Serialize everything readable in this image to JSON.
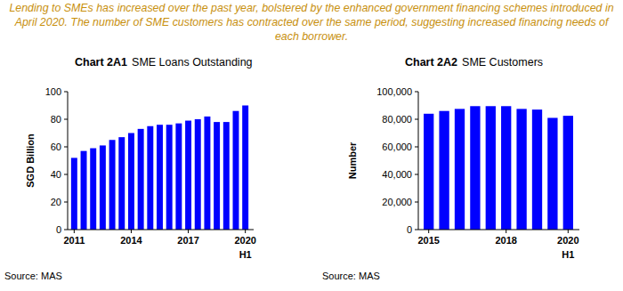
{
  "caption": "Lending to SMEs has increased over the past year, bolstered by the enhanced government financing schemes introduced in April 2020. The number of SME customers has contracted over the same period, suggesting increased financing needs of each borrower.",
  "chart_data": [
    {
      "type": "bar",
      "title": "Chart 2A1",
      "subtitle": "SME Loans Outstanding",
      "y_label": "SGD Billion",
      "categories": [
        "2011",
        null,
        null,
        null,
        null,
        null,
        "2014",
        null,
        null,
        null,
        null,
        null,
        "2017",
        null,
        null,
        null,
        null,
        null,
        "2020\nH1"
      ],
      "values": [
        52,
        57,
        59,
        61,
        65,
        67,
        70,
        73,
        75,
        76,
        76,
        77,
        79,
        80,
        82,
        78,
        78,
        86,
        90
      ],
      "color": "#0000ff",
      "ylim": [
        0,
        100
      ],
      "yticks": [
        0,
        20,
        40,
        60,
        80,
        100
      ],
      "grid": false,
      "source": "Source: MAS"
    },
    {
      "type": "bar",
      "title": "Chart 2A2",
      "subtitle": "SME Customers",
      "y_label": "Number",
      "categories": [
        "2015",
        null,
        null,
        null,
        null,
        "2018",
        null,
        null,
        null,
        "2020\nH1"
      ],
      "values": [
        84000,
        86000,
        87500,
        89500,
        89500,
        89500,
        87500,
        87000,
        81000,
        82500
      ],
      "color": "#0000ff",
      "ylim": [
        0,
        100000
      ],
      "yticks": [
        0,
        {
          "value": 20000,
          "label": "20,000"
        },
        {
          "value": 40000,
          "label": "40,000"
        },
        {
          "value": 60000,
          "label": "60,000"
        },
        {
          "value": 80000,
          "label": "80,000"
        },
        {
          "value": 100000,
          "label": "100,000"
        }
      ],
      "grid": false,
      "source": "Source: MAS"
    }
  ]
}
